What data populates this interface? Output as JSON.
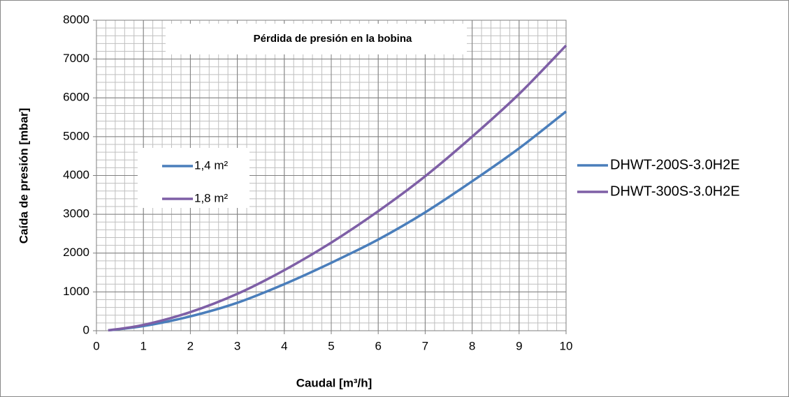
{
  "chart_data": {
    "type": "line",
    "title": "Pérdida de presión en la bobina",
    "x_label": "Caudal [m³/h]",
    "y_label": "Caída de presión [mbar]",
    "x": [
      0.25,
      1,
      2,
      3,
      4,
      5,
      6,
      7,
      8,
      9,
      10
    ],
    "series": [
      {
        "name": "DHWT-200S-3.0H2E",
        "area": "1,4 m²",
        "color": "#4a7ebb",
        "values": [
          10,
          120,
          370,
          720,
          1200,
          1750,
          2350,
          3050,
          3850,
          4700,
          5650
        ]
      },
      {
        "name": "DHWT-300S-3.0H2E",
        "area": "1,8 m²",
        "color": "#7e5fa6",
        "values": [
          10,
          150,
          480,
          950,
          1560,
          2270,
          3080,
          3980,
          5000,
          6100,
          7350
        ]
      }
    ],
    "xlim": [
      0,
      10
    ],
    "xticks": [
      0,
      1,
      2,
      3,
      4,
      5,
      6,
      7,
      8,
      9,
      10
    ],
    "ylim": [
      0,
      8000
    ],
    "yticks": [
      0,
      1000,
      2000,
      3000,
      4000,
      5000,
      6000,
      7000,
      8000
    ],
    "x_minor_step": 0.2,
    "y_minor_step": 200,
    "grid": true,
    "legend": "right"
  }
}
